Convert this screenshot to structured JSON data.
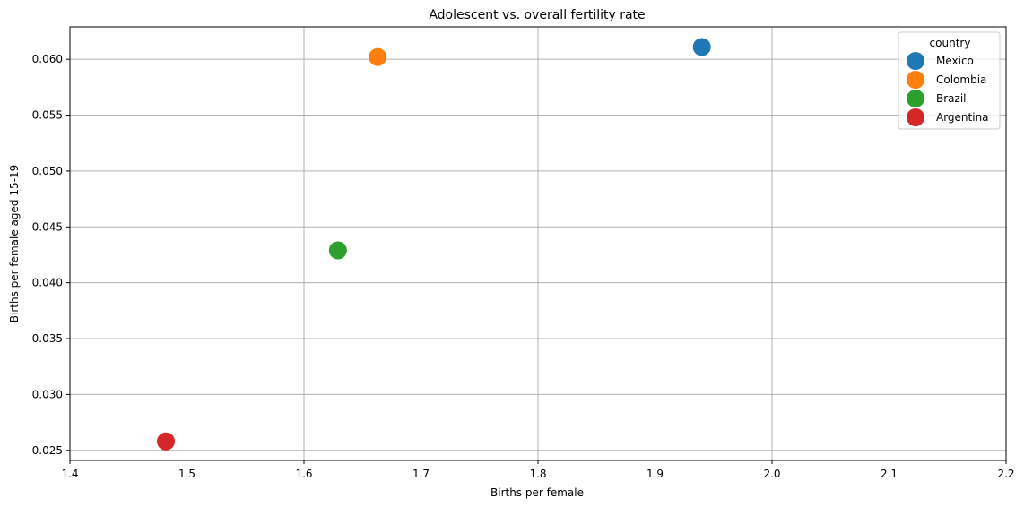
{
  "chart_data": {
    "type": "scatter",
    "title": "Adolescent vs. overall fertility rate",
    "xlabel": "Births per female",
    "ylabel": "Births per female aged 15-19",
    "xlim": [
      1.4,
      2.2
    ],
    "ylim": [
      0.0241,
      0.0629
    ],
    "xticks": [
      "1.4",
      "1.5",
      "1.6",
      "1.7",
      "1.8",
      "1.9",
      "2.0",
      "2.1",
      "2.2"
    ],
    "yticks": [
      "0.025",
      "0.030",
      "0.035",
      "0.040",
      "0.045",
      "0.050",
      "0.055",
      "0.060"
    ],
    "grid": true,
    "legend": {
      "title": "country",
      "position": "top-right"
    },
    "series": [
      {
        "name": "Mexico",
        "color": "#1f77b4",
        "points": [
          {
            "x": 1.94,
            "y": 0.0611
          }
        ]
      },
      {
        "name": "Colombia",
        "color": "#ff7f0e",
        "points": [
          {
            "x": 1.663,
            "y": 0.0602
          }
        ]
      },
      {
        "name": "Brazil",
        "color": "#2ca02c",
        "points": [
          {
            "x": 1.629,
            "y": 0.0429
          }
        ]
      },
      {
        "name": "Argentina",
        "color": "#d62728",
        "points": [
          {
            "x": 1.482,
            "y": 0.0258
          }
        ]
      }
    ]
  }
}
